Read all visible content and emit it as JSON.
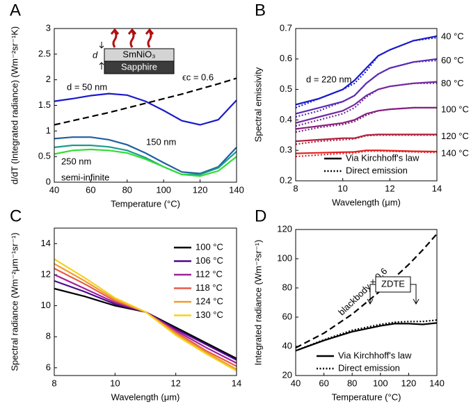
{
  "chart_data": [
    {
      "type": "line",
      "panel": "A",
      "xlabel": "Temperature (°C)",
      "ylabel": "d/dT (Integrated radiance) (Wm⁻²sr⁻¹K)",
      "xlim": [
        40,
        140
      ],
      "ylim": [
        0,
        3
      ],
      "xticks": [
        40,
        60,
        80,
        100,
        120,
        140
      ],
      "yticks": [
        0,
        0.5,
        1,
        1.5,
        2,
        2.5,
        3
      ],
      "x": [
        40,
        50,
        60,
        70,
        80,
        90,
        100,
        110,
        120,
        130,
        140
      ],
      "series": [
        {
          "name": "d = 50 nm",
          "color": "#1a1acc",
          "dash": "solid",
          "values": [
            1.58,
            1.63,
            1.69,
            1.73,
            1.7,
            1.58,
            1.4,
            1.2,
            1.12,
            1.22,
            1.6
          ]
        },
        {
          "name": "150 nm",
          "color": "#1f5f9f",
          "dash": "solid",
          "values": [
            0.85,
            0.88,
            0.88,
            0.83,
            0.73,
            0.57,
            0.38,
            0.2,
            0.17,
            0.3,
            0.68
          ]
        },
        {
          "name": "250 nm",
          "color": "#1a9c8c",
          "dash": "solid",
          "values": [
            0.68,
            0.72,
            0.72,
            0.69,
            0.62,
            0.48,
            0.3,
            0.15,
            0.15,
            0.28,
            0.6
          ]
        },
        {
          "name": "semi-infinite",
          "color": "#33dd33",
          "dash": "solid",
          "values": [
            0.55,
            0.62,
            0.64,
            0.62,
            0.57,
            0.45,
            0.3,
            0.15,
            0.12,
            0.22,
            0.5
          ]
        },
        {
          "name": "ϵc = 0.6",
          "color": "#000000",
          "dash": "dashed",
          "values": [
            1.12,
            1.2,
            1.28,
            1.36,
            1.45,
            1.54,
            1.63,
            1.72,
            1.82,
            1.92,
            2.03
          ]
        }
      ],
      "inset": {
        "film": "SmNiO₃",
        "substrate": "Sapphire",
        "thickness": "d"
      }
    },
    {
      "type": "line",
      "panel": "B",
      "xlabel": "Wavelength (μm)",
      "ylabel": "Spectral emissivity",
      "annotation": "d = 220 nm",
      "xlim": [
        8,
        14
      ],
      "ylim": [
        0.2,
        0.7
      ],
      "xticks": [
        8,
        10,
        12,
        14
      ],
      "yticks": [
        0.2,
        0.3,
        0.4,
        0.5,
        0.6,
        0.7
      ],
      "x": [
        8,
        9,
        10,
        10.5,
        11,
        11.5,
        12,
        13,
        14
      ],
      "legend": [
        {
          "name": "Via Kirchhoff's law",
          "dash": "solid"
        },
        {
          "name": "Direct emission",
          "dash": "dotted"
        }
      ],
      "series": [
        {
          "name": "40 °C",
          "color": "#1a1acc",
          "values": [
            0.45,
            0.47,
            0.5,
            0.53,
            0.57,
            0.61,
            0.63,
            0.66,
            0.675
          ],
          "direct_values": [
            0.44,
            0.47,
            0.5,
            0.52,
            0.56,
            0.61,
            0.63,
            0.66,
            0.67
          ]
        },
        {
          "name": "60 °C",
          "color": "#5a2bb5",
          "values": [
            0.42,
            0.44,
            0.46,
            0.48,
            0.52,
            0.55,
            0.57,
            0.59,
            0.6
          ],
          "direct_values": [
            0.41,
            0.43,
            0.46,
            0.48,
            0.52,
            0.55,
            0.57,
            0.59,
            0.595
          ]
        },
        {
          "name": "80 °C",
          "color": "#72289e",
          "values": [
            0.39,
            0.41,
            0.43,
            0.45,
            0.48,
            0.5,
            0.51,
            0.52,
            0.525
          ],
          "direct_values": [
            0.38,
            0.4,
            0.42,
            0.44,
            0.475,
            0.5,
            0.51,
            0.52,
            0.52
          ]
        },
        {
          "name": "100 °C",
          "color": "#86207e",
          "values": [
            0.37,
            0.38,
            0.39,
            0.4,
            0.42,
            0.43,
            0.435,
            0.44,
            0.44
          ],
          "direct_values": [
            0.36,
            0.375,
            0.385,
            0.395,
            0.415,
            0.43,
            0.435,
            0.44,
            0.44
          ]
        },
        {
          "name": "120 °C",
          "color": "#b0203c",
          "values": [
            0.33,
            0.335,
            0.34,
            0.34,
            0.35,
            0.352,
            0.352,
            0.352,
            0.352
          ],
          "direct_values": [
            0.32,
            0.33,
            0.335,
            0.338,
            0.348,
            0.35,
            0.35,
            0.35,
            0.35
          ]
        },
        {
          "name": "140 °C",
          "color": "#e02020",
          "values": [
            0.29,
            0.292,
            0.294,
            0.295,
            0.3,
            0.3,
            0.299,
            0.297,
            0.296
          ],
          "direct_values": [
            0.28,
            0.285,
            0.29,
            0.292,
            0.297,
            0.298,
            0.297,
            0.295,
            0.293
          ]
        }
      ]
    },
    {
      "type": "line",
      "panel": "C",
      "xlabel": "Wavelength (μm)",
      "ylabel": "Spectral radiance (Wm⁻²μm⁻¹sr⁻¹)",
      "xlim": [
        8,
        14
      ],
      "ylim": [
        5.5,
        15
      ],
      "xticks": [
        8,
        10,
        12,
        14
      ],
      "yticks": [
        6,
        8,
        10,
        12,
        14
      ],
      "x": [
        8,
        9,
        10,
        11,
        12,
        13,
        14
      ],
      "series": [
        {
          "name": "100 °C",
          "color": "#000000",
          "dash": "solid",
          "values": [
            11.1,
            10.6,
            10.0,
            9.6,
            8.6,
            7.6,
            6.6
          ]
        },
        {
          "name": "106 °C",
          "color": "#4b0a8c",
          "dash": "solid",
          "values": [
            11.6,
            10.9,
            10.1,
            9.6,
            8.5,
            7.5,
            6.5
          ]
        },
        {
          "name": "112 °C",
          "color": "#a0209a",
          "dash": "solid",
          "values": [
            12.0,
            11.1,
            10.2,
            9.6,
            8.4,
            7.3,
            6.3
          ]
        },
        {
          "name": "118 °C",
          "color": "#e85a4a",
          "dash": "solid",
          "values": [
            12.4,
            11.4,
            10.3,
            9.6,
            8.3,
            7.1,
            6.1
          ]
        },
        {
          "name": "124 °C",
          "color": "#f09a30",
          "dash": "solid",
          "values": [
            12.7,
            11.6,
            10.4,
            9.6,
            8.2,
            7.0,
            5.9
          ]
        },
        {
          "name": "130 °C",
          "color": "#f5d21e",
          "dash": "solid",
          "values": [
            13.0,
            11.8,
            10.5,
            9.6,
            8.1,
            6.9,
            5.8
          ]
        }
      ]
    },
    {
      "type": "line",
      "panel": "D",
      "xlabel": "Temperature (°C)",
      "ylabel": "Integrated radiance (Wm⁻²sr⁻¹)",
      "annotation": "ZDTE",
      "xlim": [
        40,
        140
      ],
      "ylim": [
        20,
        120
      ],
      "xticks": [
        40,
        60,
        80,
        100,
        120,
        140
      ],
      "yticks": [
        20,
        40,
        60,
        80,
        100,
        120
      ],
      "x": [
        40,
        60,
        80,
        100,
        110,
        120,
        130,
        140
      ],
      "series": [
        {
          "name": "blackbody × 0.6",
          "color": "#000000",
          "dash": "dashed",
          "values": [
            39,
            49,
            62,
            78,
            87,
            96,
            106,
            117
          ]
        },
        {
          "name": "Via Kirchhoff's law",
          "color": "#000000",
          "dash": "solid",
          "values": [
            37,
            44,
            50,
            54,
            55.5,
            55.5,
            55,
            56
          ]
        },
        {
          "name": "Direct emission",
          "color": "#000000",
          "dash": "dotted",
          "values": [
            37,
            44.5,
            51,
            55,
            56.5,
            57,
            57,
            58
          ]
        }
      ]
    }
  ]
}
